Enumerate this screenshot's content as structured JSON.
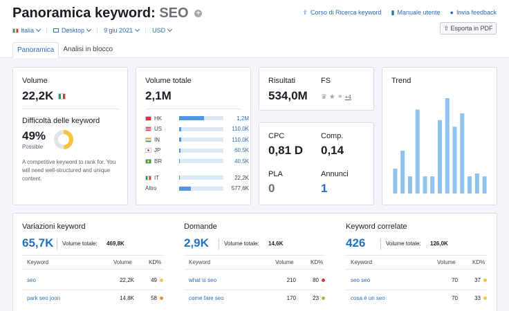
{
  "header": {
    "title_prefix": "Panoramica keyword:",
    "keyword": "SEO",
    "links": [
      {
        "icon": "graduation-icon",
        "label": "Corso di Ricerca keyword"
      },
      {
        "icon": "book-icon",
        "label": "Manuale utente"
      },
      {
        "icon": "chat-icon",
        "label": "Invia feedback"
      }
    ],
    "filters": {
      "country": "Italia",
      "device": "Desktop",
      "date": "9 giu 2021",
      "currency": "USD"
    },
    "export_label": "Esporta in PDF",
    "tabs": [
      "Panoramica",
      "Analisi in blocco"
    ]
  },
  "volume": {
    "label": "Volume",
    "value": "22,2K",
    "difficulty_label": "Difficoltà delle keyword",
    "difficulty_value": "49%",
    "difficulty_level": "Possible",
    "difficulty_percent": 49,
    "description": "A competitive keyword to rank for. You will need well-structured and unique content."
  },
  "total_volume": {
    "label": "Volume totale",
    "value": "2,1M",
    "countries": [
      {
        "code": "HK",
        "value": "1,2M",
        "fraction": 0.57
      },
      {
        "code": "US",
        "value": "110,0K",
        "fraction": 0.05
      },
      {
        "code": "IN",
        "value": "110,0K",
        "fraction": 0.05
      },
      {
        "code": "JP",
        "value": "60,5K",
        "fraction": 0.03
      },
      {
        "code": "BR",
        "value": "40,5K",
        "fraction": 0.02
      }
    ],
    "others": [
      {
        "code": "IT",
        "value": "22,2K",
        "fraction": 0.01
      },
      {
        "code": "Altro",
        "value": "577,6K",
        "fraction": 0.27
      }
    ]
  },
  "results": {
    "label": "Risultati",
    "value": "534,0M",
    "fs_label": "FS",
    "fs_more": "+4"
  },
  "cpc": {
    "cpc_label": "CPC",
    "cpc_value": "0,81 D",
    "comp_label": "Comp.",
    "comp_value": "0,14",
    "pla_label": "PLA",
    "pla_value": "0",
    "ads_label": "Annunci",
    "ads_value": "1"
  },
  "trend": {
    "label": "Trend",
    "values": [
      0.26,
      0.45,
      0.18,
      0.88,
      0.18,
      0.18,
      0.77,
      1.0,
      0.7,
      0.84,
      0.18,
      0.21,
      0.18
    ]
  },
  "variations": {
    "title": "Variazioni keyword",
    "count": "65,7K",
    "total_label": "Volume totale:",
    "total_value": "469,8K",
    "columns": [
      "Keyword",
      "Volume",
      "KD%"
    ],
    "rows": [
      {
        "keyword": "seo",
        "volume": "22,2K",
        "kd": "49",
        "color": "#f2c440"
      },
      {
        "keyword": "park seo joon",
        "volume": "14,8K",
        "kd": "58",
        "color": "#f08a36"
      }
    ]
  },
  "questions": {
    "title": "Domande",
    "count": "2,9K",
    "total_label": "Volume totale:",
    "total_value": "14,6K",
    "columns": [
      "Keyword",
      "Volume",
      "KD%"
    ],
    "rows": [
      {
        "keyword": "what is seo",
        "volume": "210",
        "kd": "80",
        "color": "#d8343c"
      },
      {
        "keyword": "come fare seo",
        "volume": "170",
        "kd": "23",
        "color": "#8cc63f"
      }
    ]
  },
  "related": {
    "title": "Keyword correlate",
    "count": "426",
    "total_label": "Volume totale:",
    "total_value": "126,0K",
    "columns": [
      "Keyword",
      "Volume",
      "KD%"
    ],
    "rows": [
      {
        "keyword": "seo seo",
        "volume": "70",
        "kd": "37",
        "color": "#f2c440"
      },
      {
        "keyword": "cosa è un seo",
        "volume": "70",
        "kd": "33",
        "color": "#f2c440"
      }
    ]
  },
  "colors": {
    "accent": "#1f6fc4",
    "bar": "#4f97e0",
    "bar_track": "#dbe9f7",
    "trend_bar": "#8fc2ee"
  }
}
